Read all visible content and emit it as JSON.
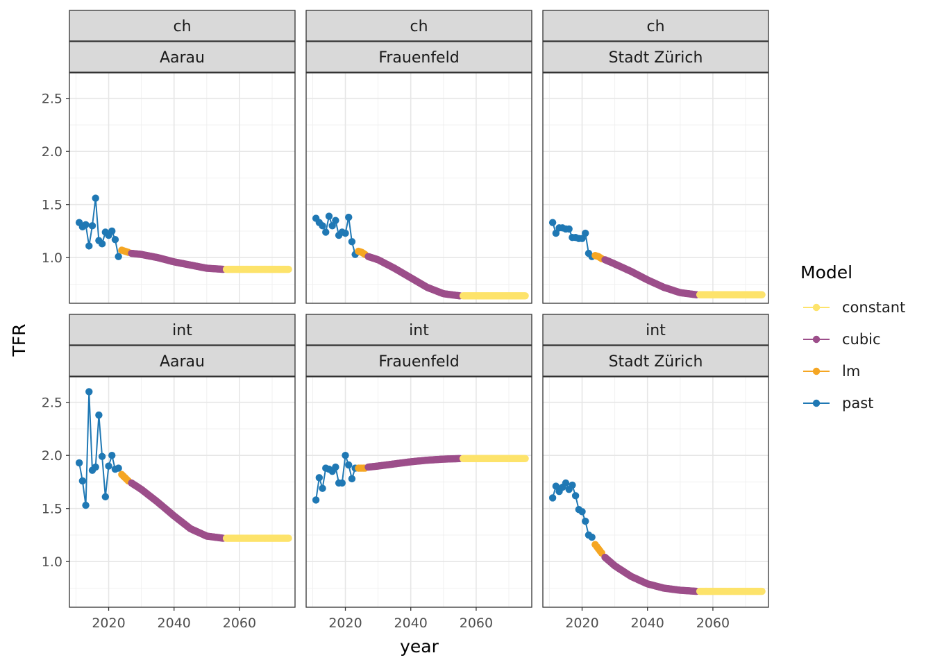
{
  "chart_data": {
    "type": "line",
    "xlabel": "year",
    "ylabel": "TFR",
    "xlim": [
      2008,
      2077
    ],
    "x_ticks": [
      2020,
      2040,
      2060
    ],
    "ylim": [
      0.57,
      2.74
    ],
    "y_ticks": [
      1.0,
      1.5,
      2.0,
      2.5
    ],
    "y_tick_labels": [
      "1.0",
      "1.5",
      "2.0",
      "2.5"
    ],
    "grid": true,
    "legend": {
      "title": "Model",
      "position": "right",
      "entries": [
        {
          "name": "constant",
          "color": "#FDE36B"
        },
        {
          "name": "cubic",
          "color": "#9C4E8A"
        },
        {
          "name": "lm",
          "color": "#F5A623"
        },
        {
          "name": "past",
          "color": "#1F78B4"
        }
      ]
    },
    "panels": [
      {
        "strip_top": "ch",
        "strip_bottom": "Aarau",
        "past": {
          "x": [
            2011,
            2012,
            2013,
            2014,
            2015,
            2016,
            2017,
            2018,
            2019,
            2020,
            2021,
            2022,
            2023
          ],
          "y": [
            1.33,
            1.29,
            1.31,
            1.11,
            1.3,
            1.56,
            1.16,
            1.13,
            1.24,
            1.21,
            1.25,
            1.17,
            1.01
          ]
        },
        "lm": {
          "x": [
            2024,
            2025,
            2026
          ],
          "y": [
            1.07,
            1.06,
            1.05
          ]
        },
        "cubic": {
          "x": [
            2027,
            2030,
            2035,
            2040,
            2045,
            2050,
            2055
          ],
          "y": [
            1.04,
            1.03,
            1.0,
            0.96,
            0.93,
            0.9,
            0.89
          ]
        },
        "constant": {
          "x": [
            2056,
            2060,
            2065,
            2070,
            2075
          ],
          "y": [
            0.89,
            0.89,
            0.89,
            0.89,
            0.89
          ]
        }
      },
      {
        "strip_top": "ch",
        "strip_bottom": "Frauenfeld",
        "past": {
          "x": [
            2011,
            2012,
            2013,
            2014,
            2015,
            2016,
            2017,
            2018,
            2019,
            2020,
            2021,
            2022,
            2023
          ],
          "y": [
            1.37,
            1.33,
            1.3,
            1.24,
            1.39,
            1.3,
            1.35,
            1.21,
            1.24,
            1.23,
            1.38,
            1.15,
            1.03
          ]
        },
        "lm": {
          "x": [
            2024,
            2025,
            2026
          ],
          "y": [
            1.06,
            1.05,
            1.03
          ]
        },
        "cubic": {
          "x": [
            2027,
            2030,
            2035,
            2040,
            2045,
            2050,
            2055
          ],
          "y": [
            1.01,
            0.98,
            0.9,
            0.81,
            0.72,
            0.66,
            0.64
          ]
        },
        "constant": {
          "x": [
            2056,
            2060,
            2065,
            2070,
            2075
          ],
          "y": [
            0.64,
            0.64,
            0.64,
            0.64,
            0.64
          ]
        }
      },
      {
        "strip_top": "ch",
        "strip_bottom": "Stadt Zürich",
        "past": {
          "x": [
            2011,
            2012,
            2013,
            2014,
            2015,
            2016,
            2017,
            2018,
            2019,
            2020,
            2021,
            2022,
            2023
          ],
          "y": [
            1.33,
            1.23,
            1.28,
            1.28,
            1.27,
            1.27,
            1.19,
            1.19,
            1.18,
            1.18,
            1.23,
            1.04,
            1.01
          ]
        },
        "lm": {
          "x": [
            2024,
            2025,
            2026
          ],
          "y": [
            1.02,
            1.01,
            0.99
          ]
        },
        "cubic": {
          "x": [
            2027,
            2030,
            2035,
            2040,
            2045,
            2050,
            2055
          ],
          "y": [
            0.98,
            0.94,
            0.87,
            0.79,
            0.72,
            0.67,
            0.65
          ]
        },
        "constant": {
          "x": [
            2056,
            2060,
            2065,
            2070,
            2075
          ],
          "y": [
            0.65,
            0.65,
            0.65,
            0.65,
            0.65
          ]
        }
      },
      {
        "strip_top": "int",
        "strip_bottom": "Aarau",
        "past": {
          "x": [
            2011,
            2012,
            2013,
            2014,
            2015,
            2016,
            2017,
            2018,
            2019,
            2020,
            2021,
            2022,
            2023
          ],
          "y": [
            1.93,
            1.76,
            1.53,
            2.6,
            1.86,
            1.89,
            2.38,
            1.99,
            1.61,
            1.9,
            2.0,
            1.87,
            1.88
          ]
        },
        "lm": {
          "x": [
            2024,
            2025,
            2026
          ],
          "y": [
            1.82,
            1.79,
            1.76
          ]
        },
        "cubic": {
          "x": [
            2027,
            2030,
            2035,
            2040,
            2045,
            2050,
            2055
          ],
          "y": [
            1.74,
            1.68,
            1.56,
            1.43,
            1.31,
            1.24,
            1.22
          ]
        },
        "constant": {
          "x": [
            2056,
            2060,
            2065,
            2070,
            2075
          ],
          "y": [
            1.22,
            1.22,
            1.22,
            1.22,
            1.22
          ]
        }
      },
      {
        "strip_top": "int",
        "strip_bottom": "Frauenfeld",
        "past": {
          "x": [
            2011,
            2012,
            2013,
            2014,
            2015,
            2016,
            2017,
            2018,
            2019,
            2020,
            2021,
            2022,
            2023
          ],
          "y": [
            1.58,
            1.79,
            1.69,
            1.88,
            1.87,
            1.85,
            1.89,
            1.74,
            1.74,
            2.0,
            1.91,
            1.78,
            1.88
          ]
        },
        "lm": {
          "x": [
            2024,
            2025,
            2026
          ],
          "y": [
            1.88,
            1.88,
            1.88
          ]
        },
        "cubic": {
          "x": [
            2027,
            2030,
            2035,
            2040,
            2045,
            2050,
            2055
          ],
          "y": [
            1.89,
            1.9,
            1.92,
            1.94,
            1.955,
            1.965,
            1.97
          ]
        },
        "constant": {
          "x": [
            2056,
            2060,
            2065,
            2070,
            2075
          ],
          "y": [
            1.97,
            1.97,
            1.97,
            1.97,
            1.97
          ]
        }
      },
      {
        "strip_top": "int",
        "strip_bottom": "Stadt Zürich",
        "past": {
          "x": [
            2011,
            2012,
            2013,
            2014,
            2015,
            2016,
            2017,
            2018,
            2019,
            2020,
            2021,
            2022,
            2023
          ],
          "y": [
            1.6,
            1.71,
            1.66,
            1.7,
            1.74,
            1.68,
            1.72,
            1.62,
            1.49,
            1.47,
            1.38,
            1.25,
            1.23
          ]
        },
        "lm": {
          "x": [
            2024,
            2025,
            2026
          ],
          "y": [
            1.16,
            1.12,
            1.08
          ]
        },
        "cubic": {
          "x": [
            2027,
            2030,
            2035,
            2040,
            2045,
            2050,
            2055
          ],
          "y": [
            1.04,
            0.96,
            0.86,
            0.79,
            0.75,
            0.73,
            0.72
          ]
        },
        "constant": {
          "x": [
            2056,
            2060,
            2065,
            2070,
            2075
          ],
          "y": [
            0.72,
            0.72,
            0.72,
            0.72,
            0.72
          ]
        }
      }
    ]
  }
}
